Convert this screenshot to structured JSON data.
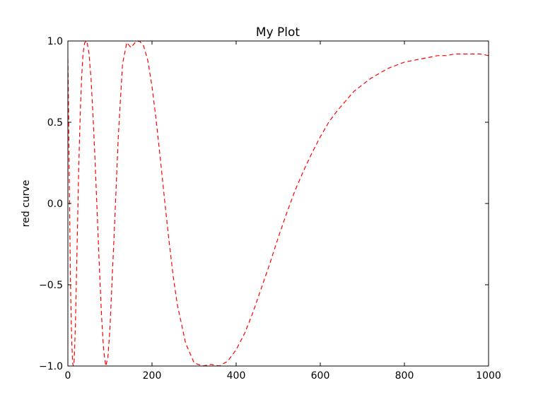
{
  "chart_data": {
    "type": "line",
    "title": "My Plot",
    "xlabel": "",
    "ylabel": "red curve",
    "xlim": [
      0,
      1000
    ],
    "ylim": [
      -1.0,
      1.0
    ],
    "x_ticks": [
      0,
      200,
      400,
      600,
      800,
      1000
    ],
    "x_tick_labels": [
      "0",
      "200",
      "400",
      "600",
      "800",
      "1000"
    ],
    "y_ticks": [
      -1.0,
      -0.5,
      0.0,
      0.5,
      1.0
    ],
    "y_tick_labels": [
      "−1.0",
      "−0.5",
      "0.0",
      "0.5",
      "1.0"
    ],
    "grid": false,
    "legend": "none",
    "series": [
      {
        "color": "#ff0000",
        "line_style": "dashed",
        "x": [
          0,
          1,
          2,
          3,
          4,
          5,
          6,
          7,
          8,
          9,
          10,
          11,
          12,
          13,
          14,
          15,
          16,
          17,
          18,
          19,
          20,
          22,
          24,
          26,
          28,
          30,
          33,
          36,
          40,
          45,
          50,
          55,
          60,
          65,
          70,
          75,
          80,
          85,
          90,
          95,
          100,
          110,
          120,
          130,
          140,
          150,
          160,
          170,
          180,
          190,
          200,
          210,
          220,
          230,
          240,
          250,
          260,
          280,
          300,
          320,
          340,
          360,
          380,
          400,
          420,
          440,
          460,
          480,
          500,
          520,
          540,
          560,
          580,
          600,
          620,
          640,
          660,
          680,
          700,
          720,
          740,
          760,
          780,
          800,
          820,
          840,
          860,
          880,
          900,
          920,
          940,
          960,
          980,
          1000
        ],
        "y": [
          0.89,
          0.71,
          0.49,
          0.23,
          -0.01,
          -0.23,
          -0.44,
          -0.6,
          -0.73,
          -0.83,
          -0.9,
          -0.96,
          -0.99,
          -1.0,
          -1.0,
          -0.96,
          -0.9,
          -0.82,
          -0.73,
          -0.62,
          -0.5,
          -0.25,
          0.0,
          0.23,
          0.43,
          0.6,
          0.79,
          0.92,
          0.99,
          1.0,
          0.93,
          0.77,
          0.53,
          0.24,
          -0.08,
          -0.4,
          -0.69,
          -0.9,
          -1.0,
          -0.95,
          -0.77,
          -0.19,
          0.42,
          0.86,
          0.99,
          0.96,
          0.99,
          1.0,
          0.97,
          0.88,
          0.72,
          0.51,
          0.27,
          0.02,
          -0.22,
          -0.44,
          -0.62,
          -0.86,
          -0.98,
          -1.0,
          -0.99,
          -1.0,
          -0.97,
          -0.9,
          -0.8,
          -0.67,
          -0.52,
          -0.37,
          -0.21,
          -0.06,
          0.08,
          0.2,
          0.31,
          0.41,
          0.5,
          0.57,
          0.63,
          0.69,
          0.73,
          0.77,
          0.8,
          0.83,
          0.85,
          0.87,
          0.88,
          0.89,
          0.9,
          0.91,
          0.91,
          0.92,
          0.92,
          0.92,
          0.92,
          0.91
        ]
      }
    ]
  }
}
